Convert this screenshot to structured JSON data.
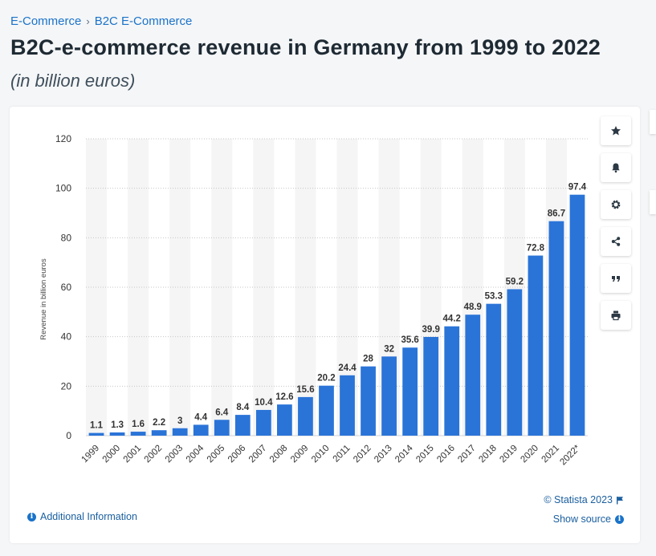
{
  "breadcrumb": {
    "items": [
      "E-Commerce",
      "B2C E-Commerce"
    ],
    "separator": "›"
  },
  "title": "B2C-e-commerce revenue in Germany from 1999 to 2022",
  "subtitle": "(in billion euros)",
  "tools": [
    "star-icon",
    "bell-icon",
    "gear-icon",
    "share-icon",
    "quote-icon",
    "print-icon"
  ],
  "footer": {
    "additional_info": "Additional Information",
    "copyright": "© Statista 2023",
    "show_source": "Show source"
  },
  "colors": {
    "bar": "#2a74d8",
    "accent": "#1a73c9"
  },
  "chart_data": {
    "type": "bar",
    "categories": [
      "1999",
      "2000",
      "2001",
      "2002",
      "2003",
      "2004",
      "2005",
      "2006",
      "2007",
      "2008",
      "2009",
      "2010",
      "2011",
      "2012",
      "2013",
      "2014",
      "2015",
      "2016",
      "2017",
      "2018",
      "2019",
      "2020",
      "2021",
      "2022*"
    ],
    "values": [
      1.1,
      1.3,
      1.6,
      2.2,
      3,
      4.4,
      6.4,
      8.4,
      10.4,
      12.6,
      15.6,
      20.2,
      24.4,
      28,
      32,
      35.6,
      39.9,
      44.2,
      48.9,
      53.3,
      59.2,
      72.8,
      86.7,
      97.4
    ],
    "ylabel": "Revenue in billion euros",
    "ylim": [
      0,
      120
    ],
    "yticks": [
      0,
      20,
      40,
      60,
      80,
      100,
      120
    ],
    "grid": true
  }
}
